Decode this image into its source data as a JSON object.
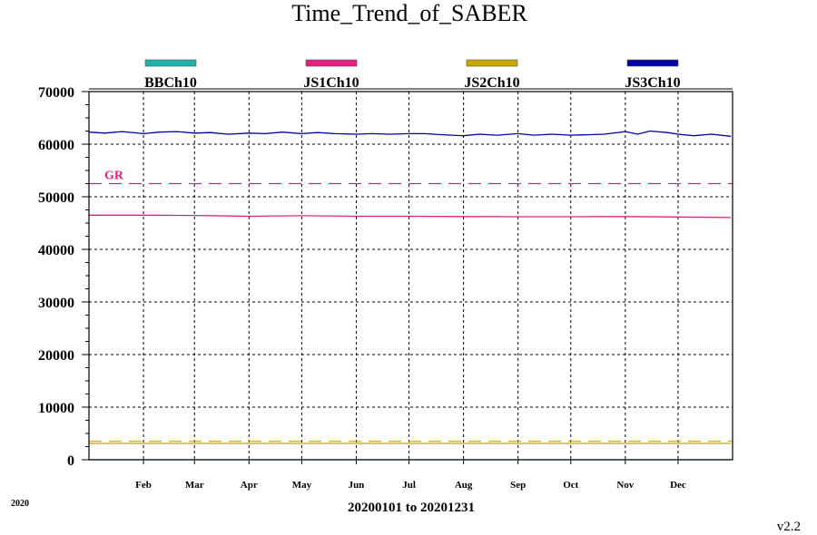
{
  "chart_data": {
    "type": "line",
    "title": "Time_Trend_of_SABER",
    "xlabel": "20200101 to 20201231",
    "year_label": "2020",
    "version": "v2.2",
    "ylim": [
      0,
      70000
    ],
    "yticks": [
      0,
      10000,
      20000,
      30000,
      40000,
      50000,
      60000,
      70000
    ],
    "x_start": "2020-01-01",
    "x_end": "2020-12-31",
    "month_ticks": [
      {
        "label": "Feb",
        "date": "2020-02-01"
      },
      {
        "label": "Mar",
        "date": "2020-03-01"
      },
      {
        "label": "Apr",
        "date": "2020-04-01"
      },
      {
        "label": "May",
        "date": "2020-05-01"
      },
      {
        "label": "Jun",
        "date": "2020-06-01"
      },
      {
        "label": "Jul",
        "date": "2020-07-01"
      },
      {
        "label": "Aug",
        "date": "2020-08-01"
      },
      {
        "label": "Sep",
        "date": "2020-09-01"
      },
      {
        "label": "Oct",
        "date": "2020-10-01"
      },
      {
        "label": "Nov",
        "date": "2020-11-01"
      },
      {
        "label": "Dec",
        "date": "2020-12-01"
      }
    ],
    "grid": true,
    "legend_position": "top",
    "series": [
      {
        "name": "BBCh10",
        "color": "#20b2aa",
        "dates": [
          "2020-01-01",
          "2020-12-31"
        ],
        "values": [
          0,
          0
        ]
      },
      {
        "name": "JS1Ch10",
        "color": "#e0207a",
        "dates": [
          "2020-01-01",
          "2020-02-01",
          "2020-03-01",
          "2020-04-01",
          "2020-05-01",
          "2020-06-01",
          "2020-07-01",
          "2020-08-01",
          "2020-09-01",
          "2020-10-01",
          "2020-11-01",
          "2020-12-01",
          "2020-12-31"
        ],
        "values": [
          46500,
          46500,
          46450,
          46300,
          46400,
          46300,
          46300,
          46250,
          46200,
          46200,
          46250,
          46150,
          46050
        ]
      },
      {
        "name": "JS2Ch10",
        "color": "#c8a800",
        "dates": [
          "2020-01-01",
          "2020-12-31"
        ],
        "values": [
          3100,
          3100
        ]
      },
      {
        "name": "JS3Ch10",
        "color": "#0000a0",
        "dates": [
          "2020-01-01",
          "2020-01-10",
          "2020-01-20",
          "2020-02-01",
          "2020-02-10",
          "2020-02-20",
          "2020-03-01",
          "2020-03-10",
          "2020-03-20",
          "2020-04-01",
          "2020-04-10",
          "2020-04-20",
          "2020-05-01",
          "2020-05-10",
          "2020-05-20",
          "2020-06-01",
          "2020-06-10",
          "2020-06-20",
          "2020-07-01",
          "2020-07-10",
          "2020-07-20",
          "2020-08-01",
          "2020-08-10",
          "2020-08-20",
          "2020-09-01",
          "2020-09-10",
          "2020-09-20",
          "2020-10-01",
          "2020-10-10",
          "2020-10-20",
          "2020-11-01",
          "2020-11-08",
          "2020-11-15",
          "2020-11-25",
          "2020-12-01",
          "2020-12-10",
          "2020-12-20",
          "2020-12-31"
        ],
        "values": [
          62300,
          62100,
          62400,
          62000,
          62300,
          62400,
          62100,
          62200,
          61900,
          62100,
          62000,
          62300,
          62000,
          62200,
          62000,
          61900,
          62000,
          61900,
          62000,
          62000,
          61800,
          61600,
          61900,
          61700,
          62000,
          61700,
          61900,
          61700,
          61800,
          61900,
          62400,
          61900,
          62500,
          62200,
          61900,
          61600,
          61900,
          61500
        ]
      }
    ],
    "reference_lines": [
      {
        "label": "GR",
        "value": 52500,
        "color": "#e0207a",
        "dashed": true
      },
      {
        "label": "",
        "value": 3500,
        "color": "#c8a800",
        "dashed": true
      }
    ]
  }
}
